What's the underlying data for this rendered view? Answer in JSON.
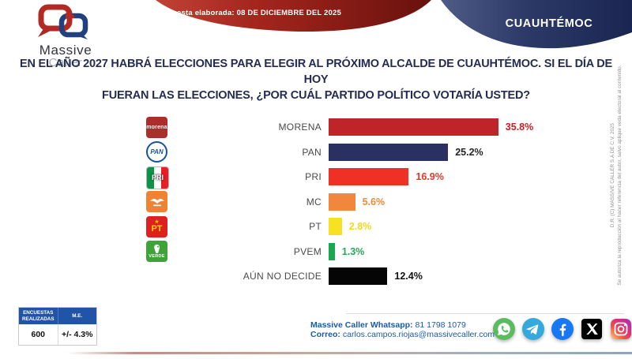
{
  "header": {
    "banner_text": "Última encuesta elaborada: 08 DE DICIEMBRE DEL 2025",
    "region_label": "CUAUHTÉMOC",
    "logo": {
      "line1": "Massive",
      "line2": "Caller"
    },
    "colors": {
      "red_band_start": "#C14335",
      "red_band_end": "#69110D",
      "blue_band_start": "#4E5C86",
      "blue_band_end": "#1B2550"
    }
  },
  "question": {
    "line1": "EN EL AÑO 2027 HABRÁ ELECCIONES PARA ELEGIR AL PRÓXIMO ALCALDE DE CUAUHTÉMOC. SI EL DÍA DE HOY",
    "line2_normal": "FUERAN LAS ELECCIONES,",
    "line2_bold": "¿POR CUÁL PARTIDO POLÍTICO VOTARÍA USTED?"
  },
  "chart_data": {
    "type": "bar",
    "orientation": "horizontal",
    "title": "EN EL AÑO 2027 HABRÁ ELECCIONES PARA ELEGIR AL PRÓXIMO ALCALDE DE CUAUHTÉMOC. SI EL DÍA DE HOY FUERAN LAS ELECCIONES, ¿POR CUÁL PARTIDO POLÍTICO VOTARÍA USTED?",
    "categories": [
      "MORENA",
      "PAN",
      "PRI",
      "MC",
      "PT",
      "PVEM",
      "AÚN NO DECIDE"
    ],
    "values": [
      35.8,
      25.2,
      16.9,
      5.6,
      2.8,
      1.3,
      12.4
    ],
    "value_labels": [
      "35.8%",
      "25.2%",
      "16.9%",
      "5.6%",
      "2.8%",
      "1.3%",
      "12.4%"
    ],
    "bar_colors": [
      "#BE2428",
      "#2A3162",
      "#EE3124",
      "#F0873D",
      "#F8E123",
      "#18A851",
      "#050505"
    ],
    "value_label_colors": [
      "#C42127",
      "#262626",
      "#E8362A",
      "#EF8B33",
      "#EFD920",
      "#27A855",
      "#111111"
    ],
    "logos": [
      "morena",
      "pan",
      "pri",
      "mc",
      "pt",
      "pvem",
      null
    ],
    "xlim": [
      0,
      40
    ],
    "grid": false,
    "legend": false
  },
  "party_logos": {
    "morena": "morena",
    "pan": "PAN",
    "pri": "PRI",
    "mc": "MC",
    "pt": "PT",
    "pvem": "VERDE"
  },
  "stats_table": {
    "headers": [
      "ENCUESTAS REALIZADAS",
      "M.E."
    ],
    "values": [
      "600",
      "+/- 4.3%"
    ],
    "header_bg": "#2154A6"
  },
  "contact": {
    "whatsapp_label": "Massive Caller Whatsapp:",
    "whatsapp_number": "81 1798 1079",
    "email_label": "Correo:",
    "email": "carlos.campos.riojas@massivecaller.com"
  },
  "social_icons": [
    "whatsapp",
    "telegram",
    "facebook",
    "x",
    "instagram"
  ],
  "copyright": {
    "line1": "D.R. (C) MASSIVE CALLER S.A DE C.V. 2025",
    "line2": "Se autoriza la reproducción al hacer referencia del autor, salvo aplique veda electoral al contenido."
  }
}
